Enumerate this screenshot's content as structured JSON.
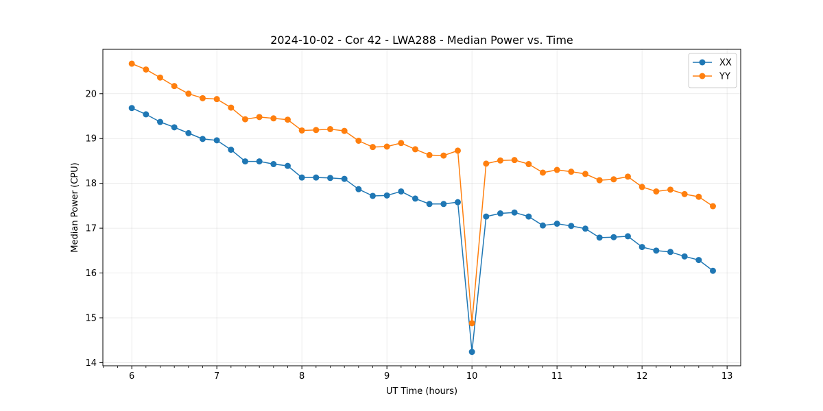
{
  "chart_data": {
    "type": "line",
    "title": "2024-10-02 - Cor 42 - LWA288 - Median Power vs. Time",
    "xlabel": "UT Time (hours)",
    "ylabel": "Median Power (CPU)",
    "xlim": [
      5.66,
      13.16
    ],
    "ylim": [
      13.93,
      20.99
    ],
    "xticks": [
      6,
      7,
      8,
      9,
      10,
      11,
      12,
      13
    ],
    "yticks": [
      14,
      15,
      16,
      17,
      18,
      19,
      20
    ],
    "grid": true,
    "legend_position": "top-right",
    "x": [
      6.0,
      6.1667,
      6.3333,
      6.5,
      6.6667,
      6.8333,
      7.0,
      7.1667,
      7.3333,
      7.5,
      7.6667,
      7.8333,
      8.0,
      8.1667,
      8.3333,
      8.5,
      8.6667,
      8.8333,
      9.0,
      9.1667,
      9.3333,
      9.5,
      9.6667,
      9.8333,
      10.0,
      10.1667,
      10.3333,
      10.5,
      10.6667,
      10.8333,
      11.0,
      11.1667,
      11.3333,
      11.5,
      11.6667,
      11.8333,
      12.0,
      12.1667,
      12.3333,
      12.5,
      12.6667,
      12.8333
    ],
    "series": [
      {
        "name": "XX",
        "color": "#1f77b4",
        "values": [
          19.68,
          19.54,
          19.37,
          19.25,
          19.12,
          18.99,
          18.96,
          18.75,
          18.49,
          18.49,
          18.43,
          18.39,
          18.13,
          18.13,
          18.12,
          18.1,
          17.87,
          17.72,
          17.73,
          17.82,
          17.66,
          17.54,
          17.54,
          17.58,
          14.24,
          17.26,
          17.33,
          17.35,
          17.26,
          17.06,
          17.1,
          17.05,
          16.99,
          16.79,
          16.8,
          16.82,
          16.58,
          16.5,
          16.47,
          16.37,
          16.29,
          16.05
        ]
      },
      {
        "name": "YY",
        "color": "#ff7f0e",
        "values": [
          20.67,
          20.54,
          20.36,
          20.17,
          20.0,
          19.9,
          19.88,
          19.69,
          19.43,
          19.48,
          19.45,
          19.42,
          19.18,
          19.19,
          19.21,
          19.17,
          18.95,
          18.81,
          18.82,
          18.9,
          18.76,
          18.63,
          18.62,
          18.73,
          14.88,
          18.44,
          18.51,
          18.52,
          18.43,
          18.24,
          18.3,
          18.26,
          18.21,
          18.07,
          18.09,
          18.15,
          17.92,
          17.82,
          17.86,
          17.76,
          17.7,
          17.49
        ]
      }
    ]
  }
}
